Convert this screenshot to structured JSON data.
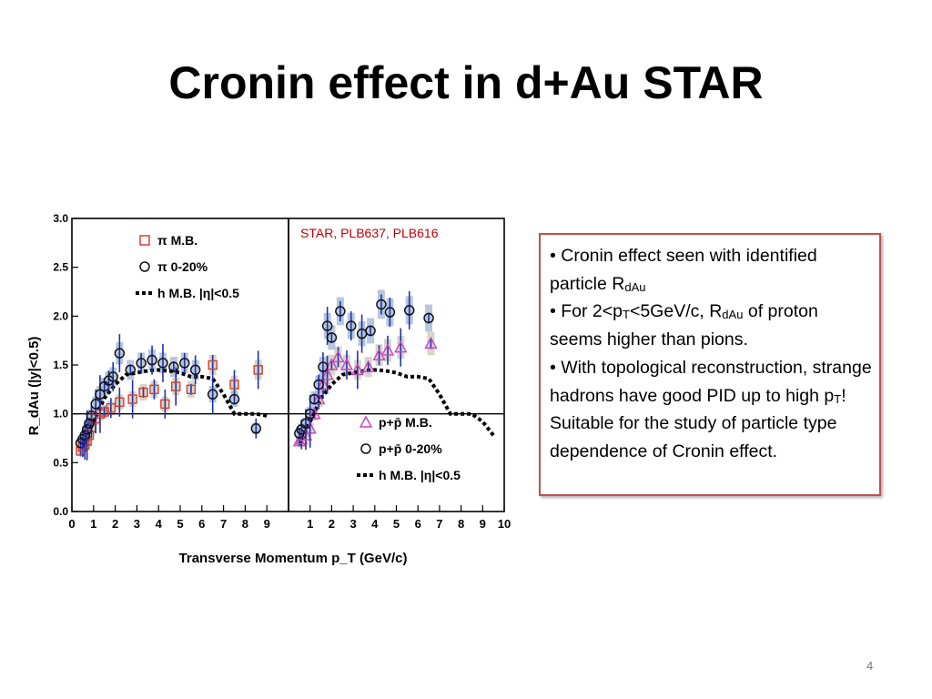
{
  "title": "Cronin effect in d+Au STAR",
  "citation": "STAR, PLB637, PLB616",
  "page_number": "4",
  "colors": {
    "pion_mb": "#d04030",
    "proton_mb": "#d040c0",
    "hadron_curve": "#000000",
    "band_grey": "#c8c8b8",
    "band_blue": "#9fb4d0",
    "box_border": "#c0504d",
    "citation": "#c00000"
  },
  "bullets": [
    {
      "parts": [
        "• Cronin effect seen with identified particle R",
        "dAu",
        ""
      ]
    },
    {
      "parts": [
        "• For 2<p",
        "T",
        "<5GeV/c, R",
        "dAu",
        " of proton seems higher than pions."
      ]
    },
    {
      "parts": [
        "• With topological reconstruction, strange hadrons have good PID up to high p",
        "T",
        "! Suitable for the study of particle type dependence of Cronin effect."
      ]
    }
  ],
  "chart_data": [
    {
      "type": "scatter",
      "panel": "left",
      "title": "",
      "ylabel": "R_dAu (|y|<0.5)",
      "xlabel": "Transverse Momentum p_T (GeV/c)",
      "xlim": [
        0,
        10
      ],
      "ylim": [
        0,
        3.0
      ],
      "x_ticks": [
        "0",
        "1",
        "2",
        "3",
        "4",
        "5",
        "6",
        "7",
        "8",
        "9"
      ],
      "y_ticks": [
        "0.0",
        "0.5",
        "1.0",
        "1.5",
        "2.0",
        "2.5",
        "3.0"
      ],
      "reference_line": 1.0,
      "grid": false,
      "legend_position": "top-left",
      "legend": [
        {
          "symbol": "square",
          "label": "π  M.B."
        },
        {
          "symbol": "circle",
          "label": "π  0-20%"
        },
        {
          "symbol": "dash",
          "label": "h  M.B. |η|<0.5"
        }
      ],
      "series": [
        {
          "name": "π  M.B.",
          "marker": "square",
          "x": [
            0.4,
            0.5,
            0.6,
            0.7,
            0.8,
            0.9,
            1.1,
            1.3,
            1.5,
            1.8,
            2.2,
            2.8,
            3.3,
            3.8,
            4.3,
            4.8,
            5.5,
            6.5,
            7.5,
            8.6
          ],
          "y": [
            0.62,
            0.66,
            0.68,
            0.72,
            0.78,
            0.86,
            0.95,
            1.0,
            1.02,
            1.06,
            1.12,
            1.15,
            1.22,
            1.25,
            1.1,
            1.28,
            1.25,
            1.5,
            1.3,
            1.45
          ]
        },
        {
          "name": "π  0-20%",
          "marker": "circle",
          "x": [
            0.4,
            0.5,
            0.6,
            0.7,
            0.8,
            0.9,
            1.1,
            1.3,
            1.5,
            1.7,
            1.9,
            2.2,
            2.7,
            3.2,
            3.7,
            4.2,
            4.7,
            5.2,
            5.7,
            6.5,
            7.5,
            8.5
          ],
          "y": [
            0.7,
            0.74,
            0.78,
            0.84,
            0.9,
            0.98,
            1.1,
            1.2,
            1.28,
            1.34,
            1.38,
            1.62,
            1.45,
            1.52,
            1.55,
            1.52,
            1.48,
            1.52,
            1.45,
            1.2,
            1.15,
            0.85
          ]
        },
        {
          "name": "h  M.B. |η|<0.5",
          "style": "dotted",
          "x": [
            0.5,
            1.0,
            1.5,
            2.0,
            2.5,
            3.0,
            3.5,
            4.0,
            4.5,
            5.0,
            5.5,
            6.0,
            6.5,
            7.0,
            7.5,
            8.0,
            8.5,
            9.0
          ],
          "y": [
            0.68,
            0.92,
            1.16,
            1.3,
            1.4,
            1.42,
            1.44,
            1.45,
            1.44,
            1.42,
            1.38,
            1.38,
            1.36,
            1.2,
            1.0,
            1.0,
            1.0,
            0.98
          ]
        }
      ]
    },
    {
      "type": "scatter",
      "panel": "right",
      "xlim": [
        0,
        10
      ],
      "ylim": [
        0,
        3.0
      ],
      "x_ticks": [
        "1",
        "2",
        "3",
        "4",
        "5",
        "6",
        "7",
        "8",
        "9",
        "10"
      ],
      "reference_line": 1.0,
      "legend_position": "bottom-left",
      "legend": [
        {
          "symbol": "triangle",
          "label": "p+p̄  M.B."
        },
        {
          "symbol": "circle",
          "label": "p+p̄  0-20%"
        },
        {
          "symbol": "dash",
          "label": "h       M.B. |η|<0.5"
        }
      ],
      "series": [
        {
          "name": "p+p̄  M.B.",
          "marker": "triangle",
          "x": [
            0.5,
            0.6,
            0.8,
            1.0,
            1.2,
            1.4,
            1.6,
            1.8,
            2.0,
            2.3,
            2.7,
            3.2,
            3.7,
            4.2,
            4.6,
            5.2,
            6.6
          ],
          "y": [
            0.72,
            0.74,
            0.78,
            0.85,
            1.0,
            1.15,
            1.3,
            1.4,
            1.5,
            1.58,
            1.5,
            1.45,
            1.48,
            1.6,
            1.65,
            1.68,
            1.72
          ]
        },
        {
          "name": "p+p̄  0-20%",
          "marker": "circle",
          "x": [
            0.5,
            0.6,
            0.8,
            1.0,
            1.2,
            1.4,
            1.6,
            1.8,
            2.0,
            2.4,
            2.9,
            3.4,
            3.8,
            4.3,
            4.7,
            5.6,
            6.5
          ],
          "y": [
            0.8,
            0.84,
            0.9,
            1.0,
            1.15,
            1.3,
            1.48,
            1.9,
            1.78,
            2.05,
            1.9,
            1.82,
            1.85,
            2.12,
            2.04,
            2.06,
            1.98
          ]
        },
        {
          "name": "h       M.B. |η|<0.5",
          "style": "dotted",
          "x": [
            0.5,
            1.0,
            1.5,
            2.0,
            2.5,
            3.0,
            3.5,
            4.0,
            4.5,
            5.0,
            5.5,
            6.0,
            6.5,
            7.0,
            7.5,
            8.0,
            8.5,
            9.0,
            9.5
          ],
          "y": [
            0.68,
            0.92,
            1.16,
            1.3,
            1.4,
            1.42,
            1.44,
            1.45,
            1.44,
            1.42,
            1.38,
            1.38,
            1.36,
            1.2,
            1.0,
            1.0,
            1.0,
            0.92,
            0.78
          ]
        }
      ]
    }
  ]
}
